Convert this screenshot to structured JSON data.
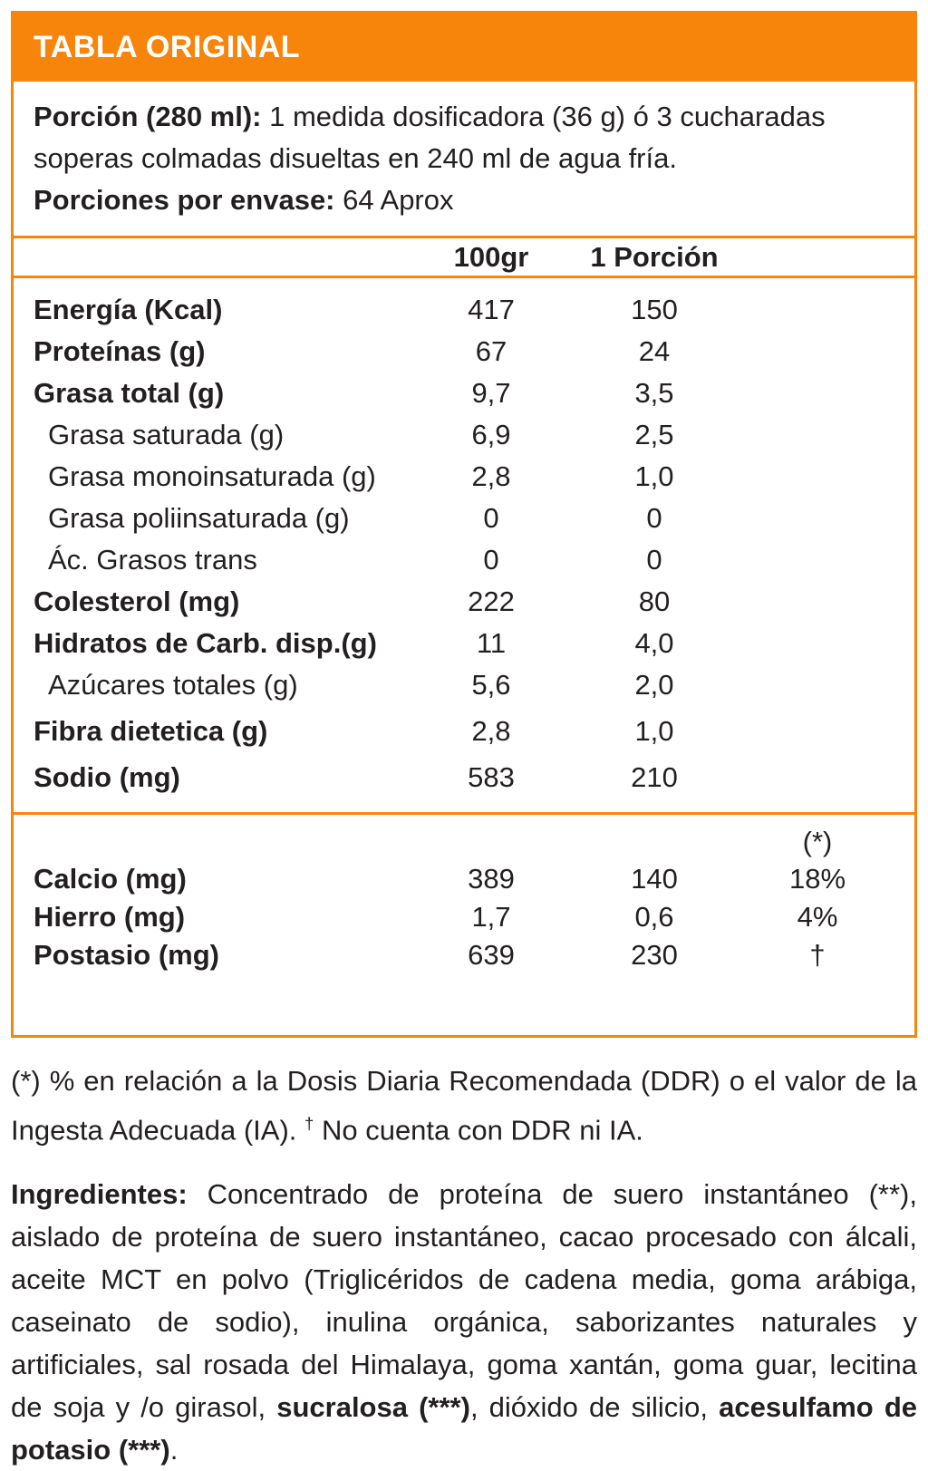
{
  "colors": {
    "accent": "#F8850B",
    "text": "#231F20",
    "header_text": "#FFFFFF",
    "background": "#FFFFFF"
  },
  "header": {
    "title": "TABLA ORIGINAL"
  },
  "serving": {
    "line1_label": "Porción (280 ml):",
    "line1_text": " 1 medida dosificadora (36 g) ó 3 cucharadas soperas colmadas disueltas en 240 ml de agua fría.",
    "line2_label": "Porciones por envase:",
    "line2_text": " 64 Aprox"
  },
  "table": {
    "col_100": "100gr",
    "col_portion": "1 Porción",
    "col_ddr": "(*)",
    "rows": [
      {
        "label": "Energía (Kcal)",
        "v100": "417",
        "vp": "150",
        "style": "bold"
      },
      {
        "label": "Proteínas (g)",
        "v100": "67",
        "vp": "24",
        "style": "bold"
      },
      {
        "label": "Grasa total (g)",
        "v100": "9,7",
        "vp": "3,5",
        "style": "bold"
      },
      {
        "label": "Grasa saturada (g)",
        "v100": "6,9",
        "vp": "2,5",
        "style": "indent"
      },
      {
        "label": "Grasa monoinsaturada (g)",
        "v100": "2,8",
        "vp": "1,0",
        "style": "indent"
      },
      {
        "label": "Grasa poliinsaturada (g)",
        "v100": "0",
        "vp": "0",
        "style": "indent"
      },
      {
        "label": "Ác. Grasos trans",
        "v100": "0",
        "vp": "0",
        "style": "indent"
      },
      {
        "label": "Colesterol (mg)",
        "v100": "222",
        "vp": "80",
        "style": "bold"
      },
      {
        "label": "Hidratos de Carb. disp.(g)",
        "v100": "11",
        "vp": "4,0",
        "style": "bold"
      },
      {
        "label": "Azúcares totales (g)",
        "v100": "5,6",
        "vp": "2,0",
        "style": "indent"
      },
      {
        "label": "Fibra dietetica (g)",
        "v100": "2,8",
        "vp": "1,0",
        "style": "bold"
      },
      {
        "label": "Sodio (mg)",
        "v100": "583",
        "vp": "210",
        "style": "bold"
      }
    ],
    "minerals": [
      {
        "label": "Calcio (mg)",
        "v100": "389",
        "vp": "140",
        "ddr": "18%"
      },
      {
        "label": "Hierro (mg)",
        "v100": "1,7",
        "vp": "0,6",
        "ddr": "4%"
      },
      {
        "label": "Postasio (mg)",
        "v100": "639",
        "vp": "230",
        "ddr": "†"
      }
    ]
  },
  "footnotes": {
    "part1": "(*) % en relación a la Dosis Diaria Recomendada (DDR) o el valor de la Ingesta Adecuada (IA). ",
    "dagger": "†",
    "part2": " No cuenta con DDR ni IA."
  },
  "ingredients": {
    "label": "Ingredientes:",
    "part1": " Concentrado de proteína de suero instantáneo (**), aislado de proteína de suero instantáneo, cacao procesado con álcali, aceite MCT en polvo (Triglicéridos de cadena media, goma arábiga, caseinato de sodio), inulina orgánica, saborizantes naturales y artificiales, sal rosada del Himalaya, goma xantán, goma guar, lecitina de soja y /o girasol, ",
    "bold1": "sucralosa (***)",
    "part2": ", dióxido de silicio, ",
    "bold2": "acesulfamo de potasio (***)",
    "part3": "."
  }
}
